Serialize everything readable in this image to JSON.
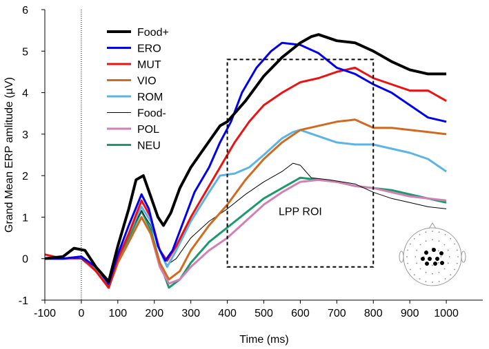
{
  "chart_data": {
    "type": "line",
    "title": "",
    "xlabel": "Time (ms)",
    "ylabel": "Grand Mean ERP amlitude (µV)",
    "xlim": [
      -100,
      1100
    ],
    "ylim": [
      -1,
      6
    ],
    "xticks": [
      -100,
      0,
      100,
      200,
      300,
      400,
      500,
      600,
      700,
      800,
      900,
      1000
    ],
    "yticks": [
      -1,
      0,
      1,
      2,
      3,
      4,
      5,
      6
    ],
    "grid": false,
    "legend_position": "top-left",
    "vline_x": 0,
    "annotation": {
      "label": "LPP ROI",
      "x_range": [
        400,
        800
      ],
      "y_range": [
        -0.2,
        4.8
      ]
    },
    "series": [
      {
        "name": "Food+",
        "color": "#000000",
        "width": 4,
        "points": [
          [
            -100,
            0.0
          ],
          [
            -50,
            0.05
          ],
          [
            -20,
            0.25
          ],
          [
            10,
            0.2
          ],
          [
            40,
            -0.2
          ],
          [
            75,
            -0.55
          ],
          [
            100,
            0.3
          ],
          [
            130,
            1.2
          ],
          [
            150,
            1.9
          ],
          [
            170,
            2.0
          ],
          [
            190,
            1.5
          ],
          [
            210,
            1.0
          ],
          [
            225,
            0.8
          ],
          [
            245,
            1.1
          ],
          [
            270,
            1.7
          ],
          [
            300,
            2.2
          ],
          [
            340,
            2.7
          ],
          [
            380,
            3.2
          ],
          [
            400,
            3.3
          ],
          [
            450,
            3.8
          ],
          [
            500,
            4.4
          ],
          [
            550,
            4.85
          ],
          [
            600,
            5.2
          ],
          [
            630,
            5.35
          ],
          [
            650,
            5.4
          ],
          [
            700,
            5.25
          ],
          [
            750,
            5.2
          ],
          [
            800,
            5.0
          ],
          [
            850,
            4.75
          ],
          [
            900,
            4.55
          ],
          [
            950,
            4.45
          ],
          [
            1000,
            4.45
          ]
        ]
      },
      {
        "name": "ERO",
        "color": "#0000ee",
        "width": 3,
        "points": [
          [
            -100,
            0.0
          ],
          [
            -50,
            0.0
          ],
          [
            0,
            0.05
          ],
          [
            40,
            -0.2
          ],
          [
            75,
            -0.6
          ],
          [
            100,
            0.1
          ],
          [
            130,
            0.8
          ],
          [
            165,
            1.55
          ],
          [
            185,
            1.2
          ],
          [
            210,
            0.3
          ],
          [
            230,
            -0.05
          ],
          [
            250,
            0.2
          ],
          [
            280,
            0.9
          ],
          [
            310,
            1.6
          ],
          [
            350,
            2.2
          ],
          [
            380,
            2.8
          ],
          [
            410,
            3.3
          ],
          [
            440,
            4.0
          ],
          [
            480,
            4.6
          ],
          [
            520,
            5.0
          ],
          [
            550,
            5.2
          ],
          [
            600,
            5.15
          ],
          [
            650,
            4.95
          ],
          [
            700,
            4.6
          ],
          [
            750,
            4.45
          ],
          [
            800,
            4.2
          ],
          [
            850,
            4.0
          ],
          [
            900,
            3.7
          ],
          [
            950,
            3.4
          ],
          [
            1000,
            3.3
          ]
        ]
      },
      {
        "name": "MUT",
        "color": "#ee1111",
        "width": 3,
        "points": [
          [
            -100,
            0.1
          ],
          [
            -50,
            0.0
          ],
          [
            0,
            0.05
          ],
          [
            40,
            -0.3
          ],
          [
            75,
            -0.7
          ],
          [
            100,
            0.0
          ],
          [
            130,
            0.6
          ],
          [
            165,
            1.4
          ],
          [
            190,
            1.0
          ],
          [
            215,
            0.2
          ],
          [
            235,
            -0.05
          ],
          [
            260,
            0.3
          ],
          [
            300,
            1.0
          ],
          [
            340,
            1.6
          ],
          [
            380,
            2.2
          ],
          [
            420,
            2.8
          ],
          [
            460,
            3.3
          ],
          [
            500,
            3.7
          ],
          [
            550,
            4.0
          ],
          [
            600,
            4.25
          ],
          [
            650,
            4.35
          ],
          [
            700,
            4.5
          ],
          [
            750,
            4.6
          ],
          [
            800,
            4.35
          ],
          [
            850,
            4.2
          ],
          [
            900,
            4.05
          ],
          [
            950,
            4.05
          ],
          [
            1000,
            3.8
          ]
        ]
      },
      {
        "name": "VIO",
        "color": "#d2691e",
        "width": 3,
        "points": [
          [
            -100,
            0.0
          ],
          [
            -50,
            0.0
          ],
          [
            0,
            0.05
          ],
          [
            40,
            -0.3
          ],
          [
            75,
            -0.7
          ],
          [
            100,
            -0.1
          ],
          [
            130,
            0.4
          ],
          [
            165,
            1.0
          ],
          [
            190,
            0.6
          ],
          [
            215,
            -0.1
          ],
          [
            240,
            -0.5
          ],
          [
            270,
            -0.3
          ],
          [
            300,
            0.2
          ],
          [
            350,
            0.8
          ],
          [
            400,
            1.3
          ],
          [
            450,
            1.9
          ],
          [
            500,
            2.4
          ],
          [
            550,
            2.8
          ],
          [
            600,
            3.1
          ],
          [
            650,
            3.2
          ],
          [
            700,
            3.3
          ],
          [
            750,
            3.35
          ],
          [
            800,
            3.15
          ],
          [
            850,
            3.15
          ],
          [
            900,
            3.1
          ],
          [
            950,
            3.05
          ],
          [
            1000,
            3.0
          ]
        ]
      },
      {
        "name": "ROM",
        "color": "#5ab4e6",
        "width": 3,
        "points": [
          [
            -100,
            0.0
          ],
          [
            -50,
            0.0
          ],
          [
            0,
            0.05
          ],
          [
            40,
            -0.25
          ],
          [
            75,
            -0.6
          ],
          [
            100,
            0.0
          ],
          [
            130,
            0.6
          ],
          [
            165,
            1.25
          ],
          [
            190,
            0.9
          ],
          [
            215,
            0.2
          ],
          [
            235,
            -0.2
          ],
          [
            260,
            0.2
          ],
          [
            300,
            0.9
          ],
          [
            350,
            1.6
          ],
          [
            380,
            2.0
          ],
          [
            420,
            2.05
          ],
          [
            460,
            2.2
          ],
          [
            500,
            2.5
          ],
          [
            550,
            2.9
          ],
          [
            580,
            3.05
          ],
          [
            600,
            3.1
          ],
          [
            650,
            2.95
          ],
          [
            700,
            2.8
          ],
          [
            750,
            2.75
          ],
          [
            800,
            2.75
          ],
          [
            850,
            2.65
          ],
          [
            900,
            2.55
          ],
          [
            950,
            2.4
          ],
          [
            1000,
            2.1
          ]
        ]
      },
      {
        "name": "Food-",
        "color": "#000000",
        "width": 1,
        "points": [
          [
            -100,
            0.0
          ],
          [
            -50,
            0.0
          ],
          [
            0,
            0.0
          ],
          [
            40,
            -0.3
          ],
          [
            75,
            -0.65
          ],
          [
            100,
            0.0
          ],
          [
            130,
            0.6
          ],
          [
            165,
            1.15
          ],
          [
            190,
            0.8
          ],
          [
            215,
            0.2
          ],
          [
            235,
            -0.15
          ],
          [
            260,
            0.0
          ],
          [
            300,
            0.5
          ],
          [
            350,
            0.9
          ],
          [
            400,
            1.2
          ],
          [
            450,
            1.55
          ],
          [
            500,
            1.85
          ],
          [
            550,
            2.1
          ],
          [
            580,
            2.3
          ],
          [
            600,
            2.25
          ],
          [
            630,
            1.95
          ],
          [
            680,
            1.9
          ],
          [
            750,
            1.8
          ],
          [
            800,
            1.6
          ],
          [
            850,
            1.45
          ],
          [
            900,
            1.35
          ],
          [
            950,
            1.25
          ],
          [
            1000,
            1.2
          ]
        ]
      },
      {
        "name": "POL",
        "color": "#d17fb4",
        "width": 3,
        "points": [
          [
            -100,
            0.0
          ],
          [
            -50,
            0.0
          ],
          [
            0,
            0.0
          ],
          [
            40,
            -0.3
          ],
          [
            75,
            -0.7
          ],
          [
            100,
            -0.1
          ],
          [
            130,
            0.4
          ],
          [
            165,
            1.0
          ],
          [
            190,
            0.6
          ],
          [
            215,
            -0.2
          ],
          [
            240,
            -0.6
          ],
          [
            270,
            -0.5
          ],
          [
            300,
            -0.2
          ],
          [
            350,
            0.2
          ],
          [
            400,
            0.5
          ],
          [
            450,
            0.9
          ],
          [
            500,
            1.3
          ],
          [
            550,
            1.6
          ],
          [
            600,
            1.85
          ],
          [
            650,
            1.9
          ],
          [
            700,
            1.85
          ],
          [
            750,
            1.75
          ],
          [
            800,
            1.7
          ],
          [
            850,
            1.6
          ],
          [
            900,
            1.5
          ],
          [
            950,
            1.45
          ],
          [
            1000,
            1.4
          ]
        ]
      },
      {
        "name": "NEU",
        "color": "#1a9a6a",
        "width": 3,
        "points": [
          [
            -100,
            0.0
          ],
          [
            -50,
            0.0
          ],
          [
            0,
            0.0
          ],
          [
            40,
            -0.3
          ],
          [
            75,
            -0.7
          ],
          [
            100,
            -0.1
          ],
          [
            130,
            0.5
          ],
          [
            165,
            1.15
          ],
          [
            190,
            0.7
          ],
          [
            215,
            -0.1
          ],
          [
            240,
            -0.7
          ],
          [
            270,
            -0.5
          ],
          [
            300,
            -0.1
          ],
          [
            350,
            0.4
          ],
          [
            400,
            0.75
          ],
          [
            450,
            1.1
          ],
          [
            500,
            1.45
          ],
          [
            550,
            1.7
          ],
          [
            600,
            1.95
          ],
          [
            650,
            1.9
          ],
          [
            700,
            1.85
          ],
          [
            750,
            1.75
          ],
          [
            800,
            1.7
          ],
          [
            850,
            1.65
          ],
          [
            900,
            1.55
          ],
          [
            950,
            1.45
          ],
          [
            1000,
            1.35
          ]
        ]
      }
    ]
  }
}
